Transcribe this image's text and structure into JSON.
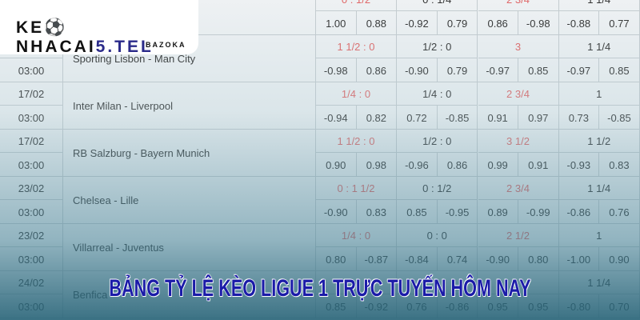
{
  "logo": {
    "brand_start": "KE",
    "brand_mid": "NHACAI",
    "brand_end": "5.TEL",
    "subtitle": "BAZOKA"
  },
  "title": "BẢNG TỶ LỆ KÈO LIGUE 1 TRỰC TUYẾN HÔM NAY",
  "colors": {
    "handicap_red": "#e06868",
    "title_fill": "#1b1ba8"
  },
  "matches": [
    {
      "date": "",
      "time": "",
      "teams": "",
      "handicaps": [
        {
          "v": "0 : 1/2",
          "red": true
        },
        {
          "v": "0 : 1/4",
          "red": false
        },
        {
          "v": "2 3/4",
          "red": true
        },
        {
          "v": "1 1/4",
          "red": false
        }
      ],
      "odds": [
        "1.00",
        "0.88",
        "-0.92",
        "0.79",
        "0.86",
        "-0.98",
        "-0.88",
        "0.77"
      ]
    },
    {
      "date": "",
      "time": "03:00",
      "teams": "Sporting Lisbon - Man City",
      "handicaps": [
        {
          "v": "1 1/2 : 0",
          "red": true
        },
        {
          "v": "1/2 : 0",
          "red": false
        },
        {
          "v": "3",
          "red": true
        },
        {
          "v": "1 1/4",
          "red": false
        }
      ],
      "odds": [
        "-0.98",
        "0.86",
        "-0.90",
        "0.79",
        "-0.97",
        "0.85",
        "-0.97",
        "0.85"
      ]
    },
    {
      "date": "17/02",
      "time": "03:00",
      "teams": "Inter Milan - Liverpool",
      "handicaps": [
        {
          "v": "1/4 : 0",
          "red": true
        },
        {
          "v": "1/4 : 0",
          "red": false
        },
        {
          "v": "2 3/4",
          "red": true
        },
        {
          "v": "1",
          "red": false
        }
      ],
      "odds": [
        "-0.94",
        "0.82",
        "0.72",
        "-0.85",
        "0.91",
        "0.97",
        "0.73",
        "-0.85"
      ]
    },
    {
      "date": "17/02",
      "time": "03:00",
      "teams": "RB Salzburg - Bayern Munich",
      "handicaps": [
        {
          "v": "1 1/2 : 0",
          "red": true
        },
        {
          "v": "1/2 : 0",
          "red": false
        },
        {
          "v": "3 1/2",
          "red": true
        },
        {
          "v": "1 1/2",
          "red": false
        }
      ],
      "odds": [
        "0.90",
        "0.98",
        "-0.96",
        "0.86",
        "0.99",
        "0.91",
        "-0.93",
        "0.83"
      ]
    },
    {
      "date": "23/02",
      "time": "03:00",
      "teams": "Chelsea - Lille",
      "handicaps": [
        {
          "v": "0 : 1 1/2",
          "red": true
        },
        {
          "v": "0 : 1/2",
          "red": false
        },
        {
          "v": "2 3/4",
          "red": true
        },
        {
          "v": "1 1/4",
          "red": false
        }
      ],
      "odds": [
        "-0.90",
        "0.83",
        "0.85",
        "-0.95",
        "0.89",
        "-0.99",
        "-0.86",
        "0.76"
      ]
    },
    {
      "date": "23/02",
      "time": "03:00",
      "teams": "Villarreal - Juventus",
      "handicaps": [
        {
          "v": "1/4 : 0",
          "red": true
        },
        {
          "v": "0 : 0",
          "red": false
        },
        {
          "v": "2 1/2",
          "red": true
        },
        {
          "v": "1",
          "red": false
        }
      ],
      "odds": [
        "0.80",
        "-0.87",
        "-0.84",
        "0.74",
        "-0.90",
        "0.80",
        "-1.00",
        "0.90"
      ]
    },
    {
      "date": "24/02",
      "time": "03:00",
      "teams": "Benfica",
      "handicaps": [
        {
          "v": "",
          "red": true
        },
        {
          "v": "",
          "red": false
        },
        {
          "v": "",
          "red": true
        },
        {
          "v": "1 1/4",
          "red": false
        }
      ],
      "odds": [
        "0.85",
        "-0.92",
        "0.76",
        "-0.86",
        "0.95",
        "0.95",
        "-0.80",
        "0.70"
      ]
    }
  ]
}
